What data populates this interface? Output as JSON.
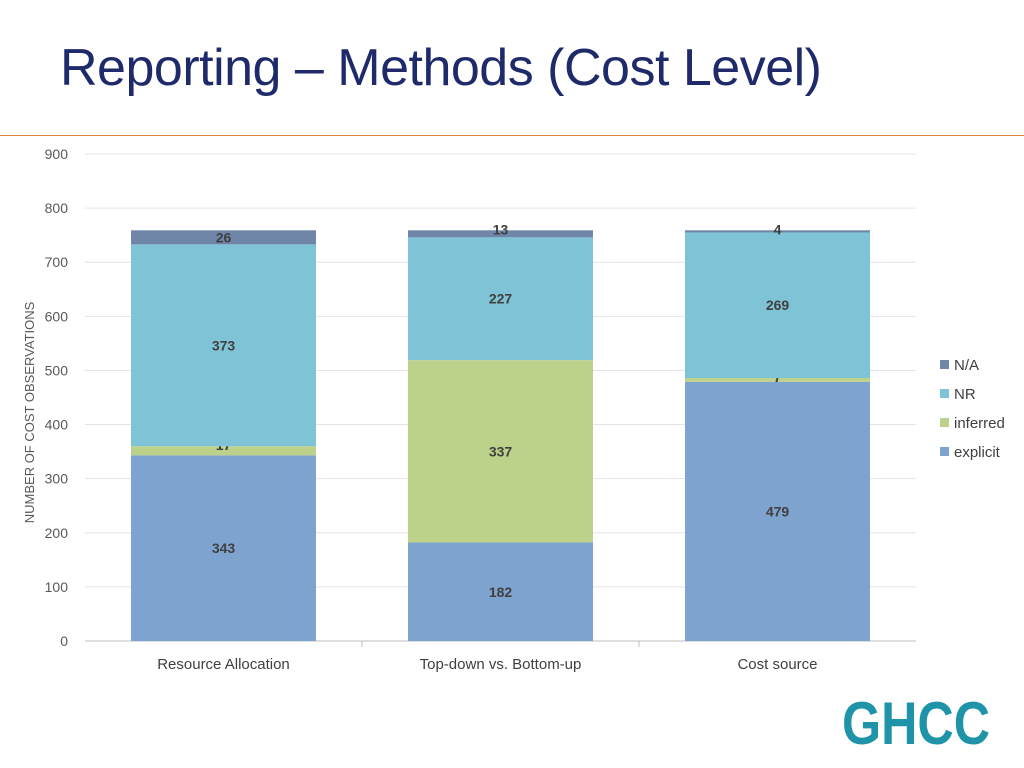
{
  "slide": {
    "title": "Reporting – Methods (Cost Level)",
    "logo_text": "GHCC",
    "accent_rule_color": "#e0803a",
    "title_color": "#1f2a6b"
  },
  "chart_data": {
    "type": "bar",
    "stacked": true,
    "categories": [
      "Resource Allocation",
      "Top-down vs. Bottom-up",
      "Cost source"
    ],
    "series": [
      {
        "name": "explicit",
        "values": [
          343,
          182,
          479
        ],
        "color": "#7fa3cf"
      },
      {
        "name": "inferred",
        "values": [
          17,
          337,
          7
        ],
        "color": "#bcd18a"
      },
      {
        "name": "NR",
        "values": [
          373,
          227,
          269
        ],
        "color": "#7fc3d6"
      },
      {
        "name": "N/A",
        "values": [
          26,
          13,
          4
        ],
        "color": "#6f86a8"
      }
    ],
    "title": "",
    "xlabel": "",
    "ylabel": "NUMBER OF COST OBSERVATIONS",
    "ylim": [
      0,
      900
    ],
    "yticks": [
      0,
      100,
      200,
      300,
      400,
      500,
      600,
      700,
      800,
      900
    ],
    "grid": true,
    "legend_position": "right",
    "legend_order": [
      "N/A",
      "NR",
      "inferred",
      "explicit"
    ]
  }
}
